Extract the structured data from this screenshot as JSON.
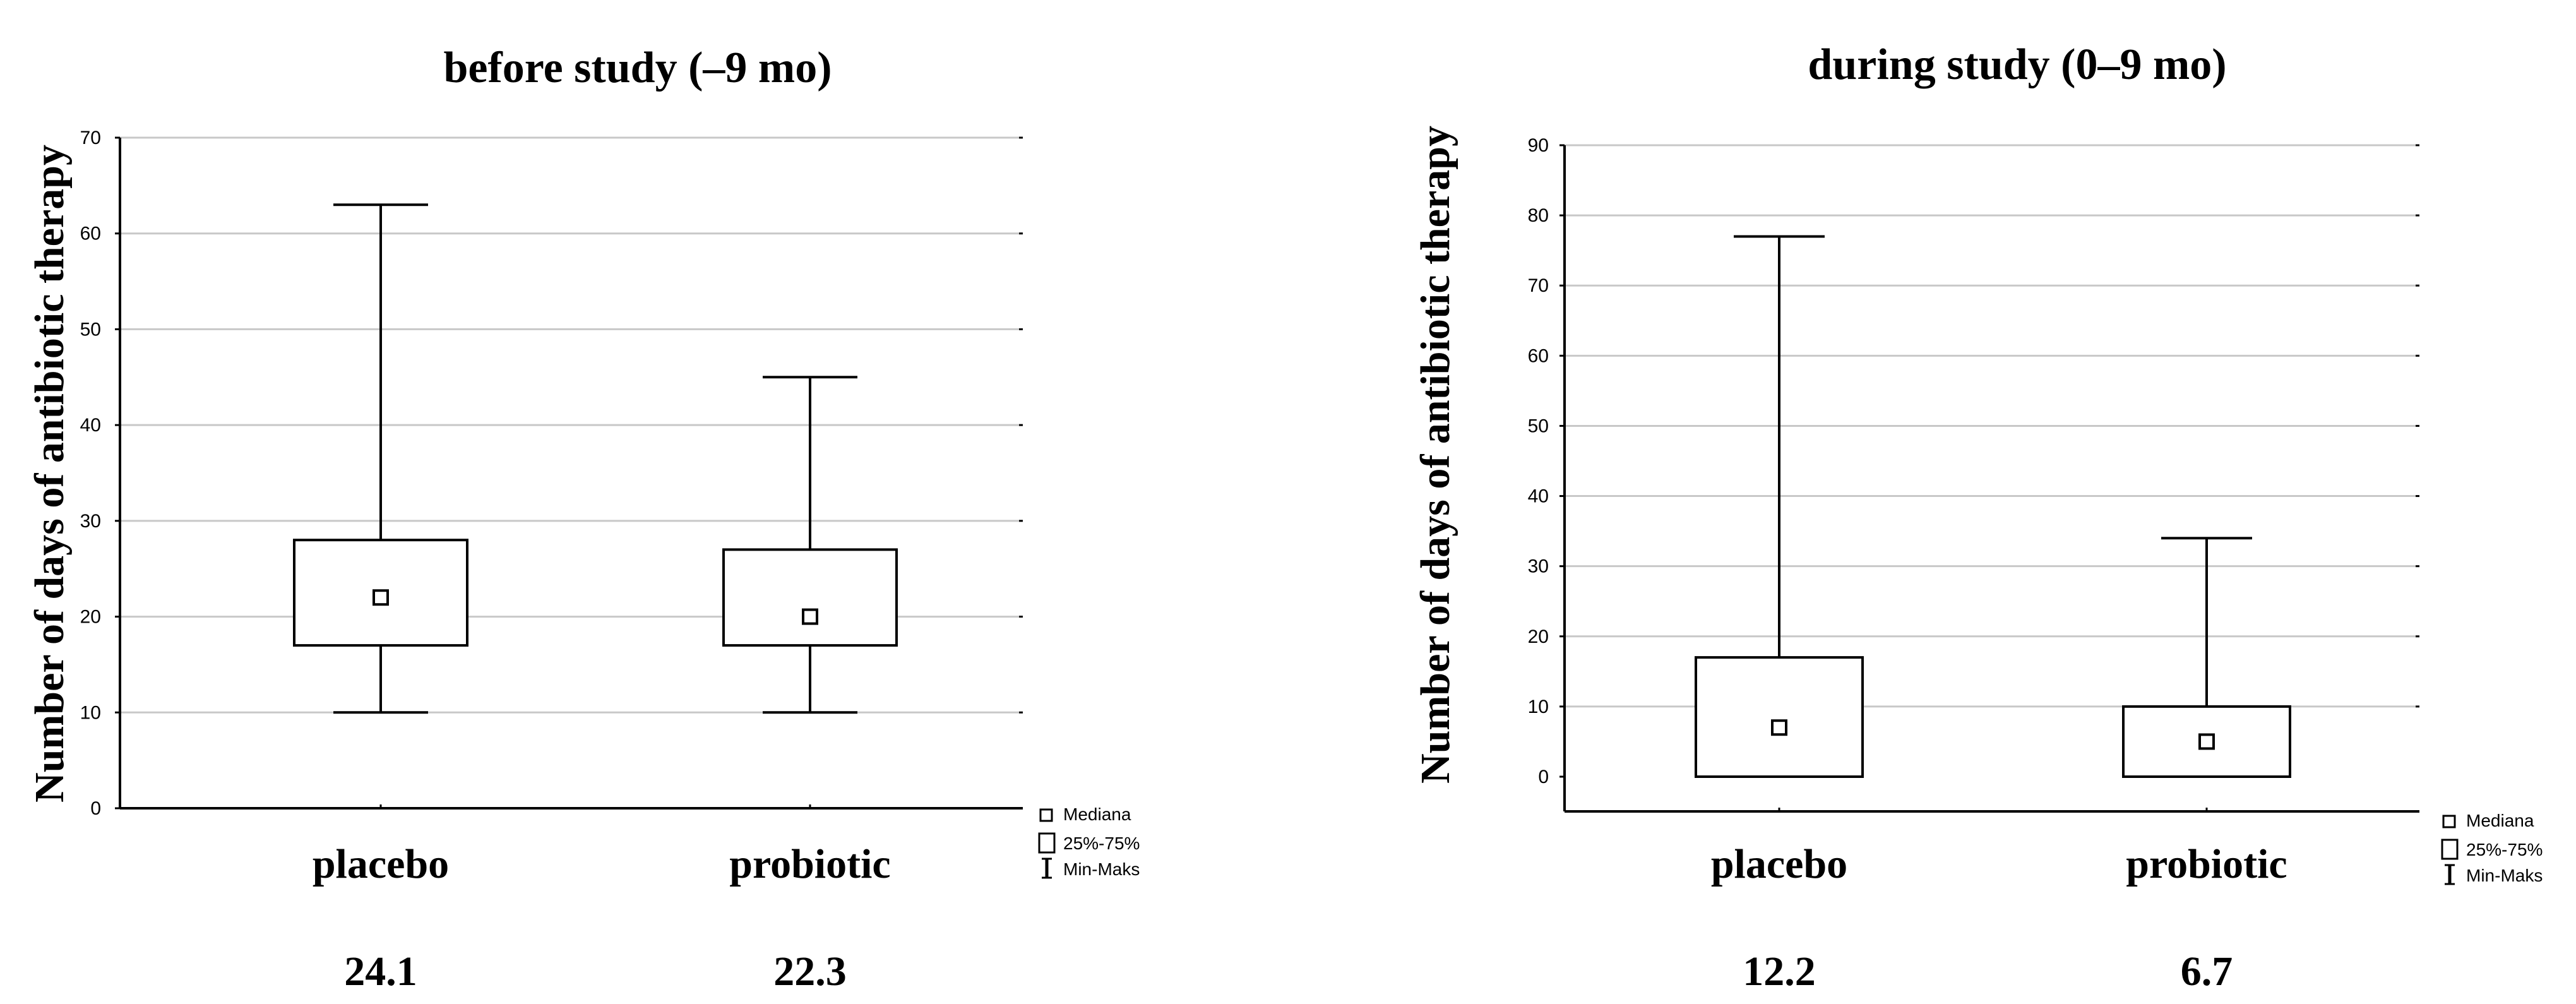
{
  "chart_data": [
    {
      "type": "box",
      "title": "before study (–9 mo)",
      "ylabel": "Number of days of antibiotic therapy",
      "xlabel": "",
      "ylim": [
        0,
        70
      ],
      "yticks": [
        0,
        10,
        20,
        30,
        40,
        50,
        60,
        70
      ],
      "grid": true,
      "categories": [
        "placebo",
        "probiotic"
      ],
      "boxes": [
        {
          "category": "placebo",
          "min": 10,
          "q1": 17,
          "median": 22,
          "q3": 28,
          "max": 63,
          "below_label": "24.1"
        },
        {
          "category": "probiotic",
          "min": 10,
          "q1": 17,
          "median": 20,
          "q3": 27,
          "max": 45,
          "below_label": "22.3"
        }
      ],
      "legend": {
        "position": "bottom-right",
        "items": [
          "Mediana",
          "25%-75%",
          "Min-Maks"
        ]
      }
    },
    {
      "type": "box",
      "title": "during study (0–9 mo)",
      "ylabel": "Number of days of antibiotic therapy",
      "xlabel": "",
      "ylim": [
        0,
        90
      ],
      "yticks": [
        0,
        10,
        20,
        30,
        40,
        50,
        60,
        70,
        80,
        90
      ],
      "grid": true,
      "categories": [
        "placebo",
        "probiotic"
      ],
      "boxes": [
        {
          "category": "placebo",
          "min": 0,
          "q1": 0,
          "median": 7,
          "q3": 17,
          "max": 77,
          "below_label": "12.2"
        },
        {
          "category": "probiotic",
          "min": 0,
          "q1": 0,
          "median": 5,
          "q3": 10,
          "max": 34,
          "below_label": "6.7"
        }
      ],
      "legend": {
        "position": "bottom-right",
        "items": [
          "Mediana",
          "25%-75%",
          "Min-Maks"
        ]
      }
    }
  ]
}
